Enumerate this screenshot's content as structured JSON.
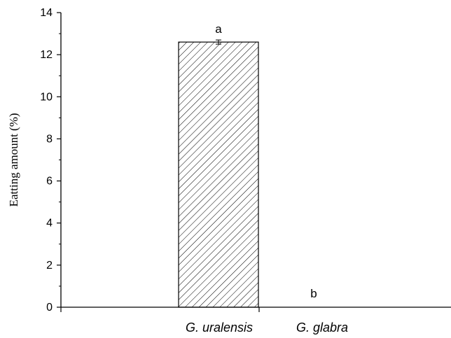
{
  "chart_data": {
    "type": "bar",
    "title": "",
    "xlabel": "",
    "ylabel": "Eatting amount (%)",
    "categories": [
      "G. uralensis",
      "G. glabra"
    ],
    "values": [
      12.6,
      0
    ],
    "errors": [
      0.1,
      0
    ],
    "significance_labels": [
      "a",
      "b"
    ],
    "ylim": [
      0,
      14
    ],
    "yticks": [
      0,
      2,
      4,
      6,
      8,
      10,
      12,
      14
    ],
    "grid": false,
    "legend": "none",
    "bar_fill": "hatched",
    "bar_color": "#000000"
  }
}
